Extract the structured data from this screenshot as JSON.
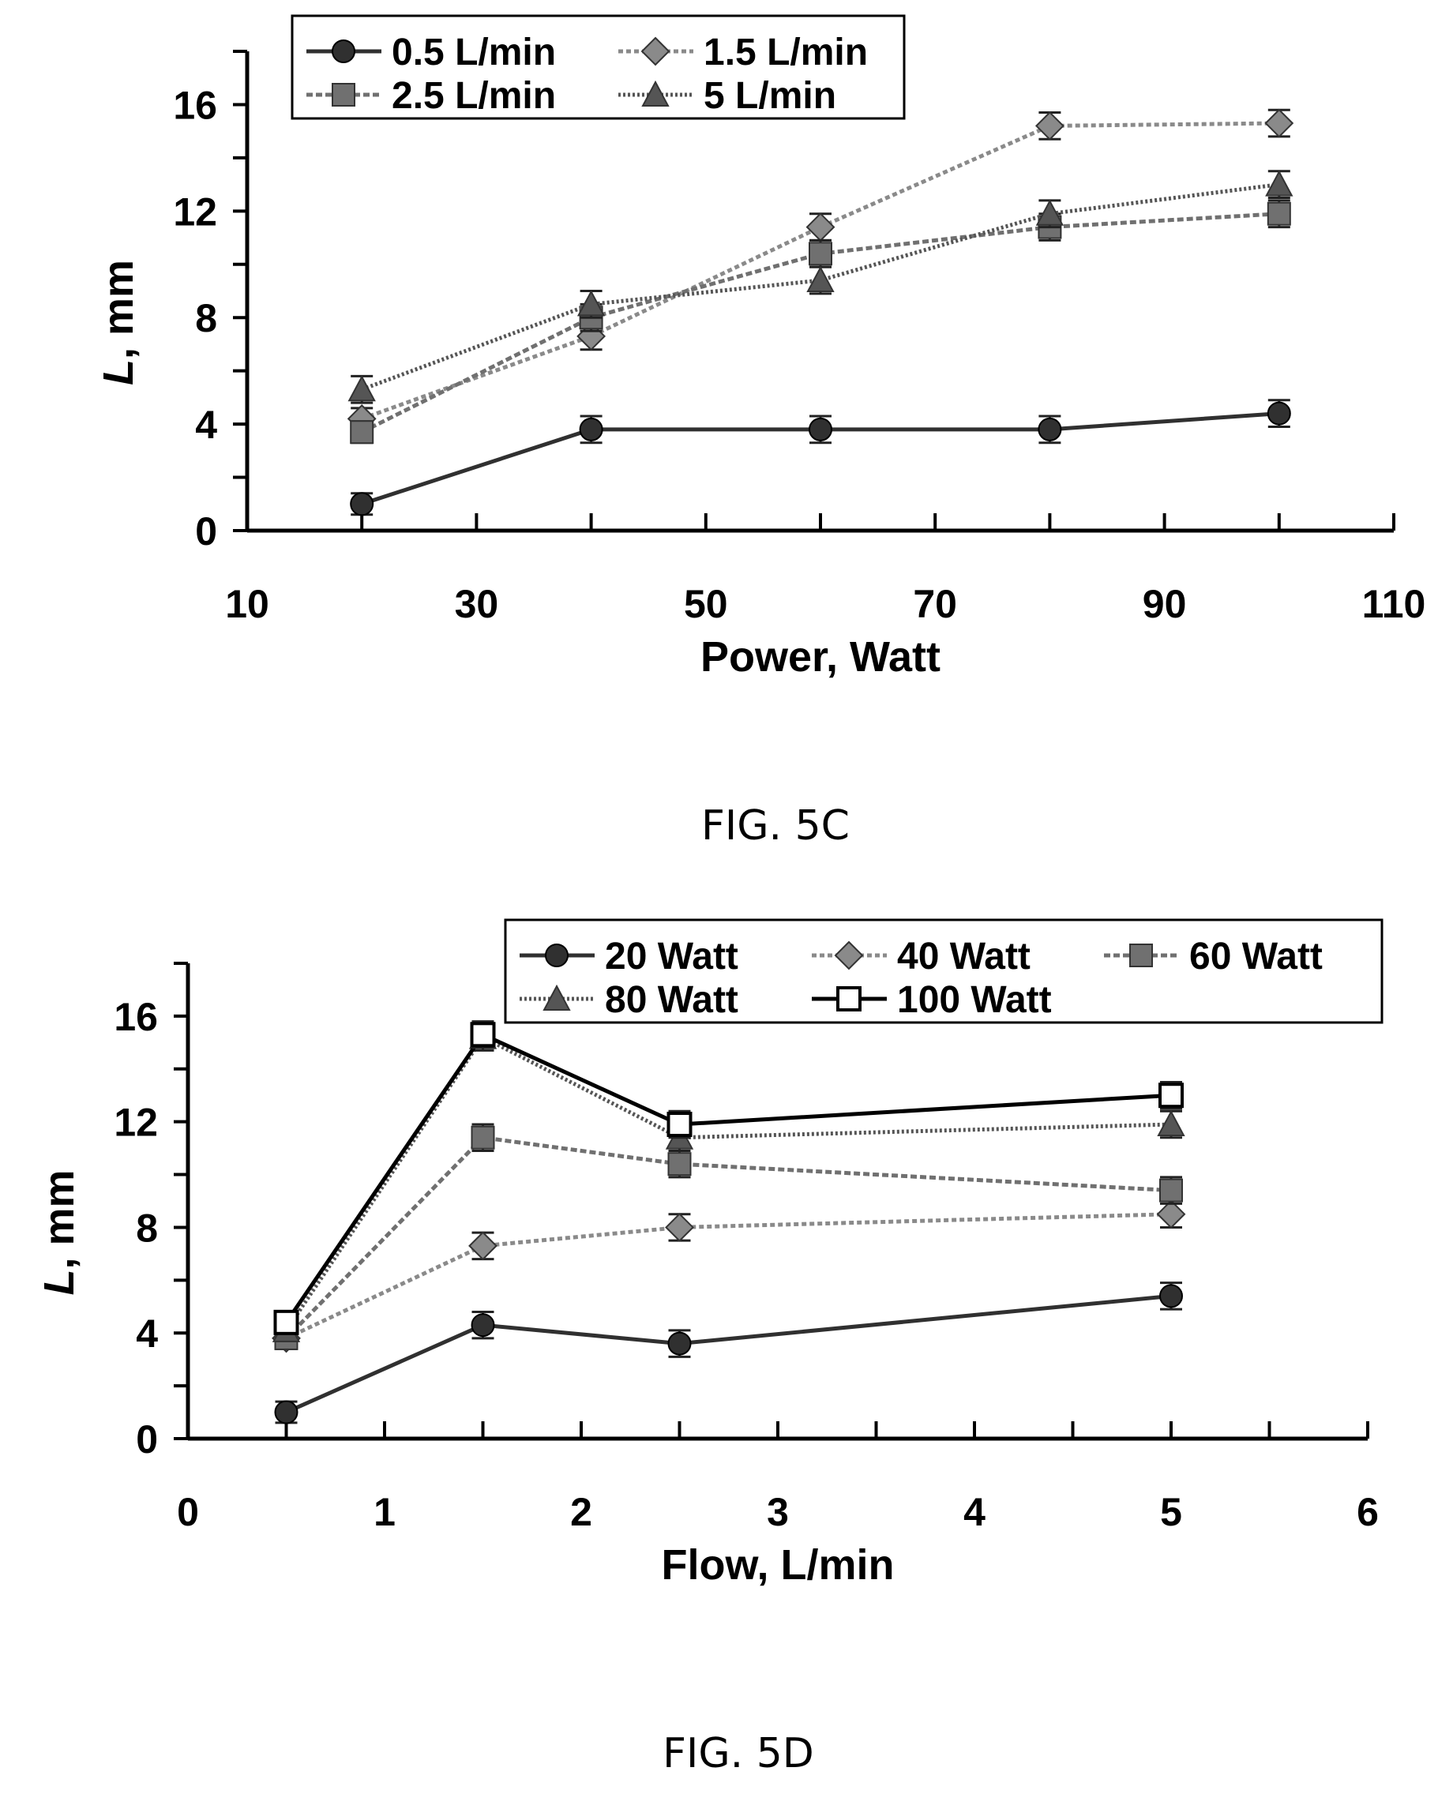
{
  "chart_data": [
    {
      "type": "line",
      "caption": "FIG. 5C",
      "xlabel": "Power, Watt",
      "ylabel_italic": "L",
      "ylabel_rest": ", mm",
      "xlim": [
        10,
        110
      ],
      "ylim": [
        0,
        18
      ],
      "x_ticks": [
        10,
        30,
        50,
        70,
        90,
        110
      ],
      "y_ticks": [
        0,
        4,
        8,
        12,
        16
      ],
      "legend_position": "top-left",
      "series": [
        {
          "name": "0.5 L/min",
          "marker": "circle",
          "color": "#303030",
          "dash": "",
          "x": [
            20,
            40,
            60,
            80,
            100
          ],
          "y": [
            1.0,
            3.8,
            3.8,
            3.8,
            4.4
          ],
          "err": [
            0.4,
            0.5,
            0.5,
            0.5,
            0.5
          ]
        },
        {
          "name": "1.5 L/min",
          "marker": "diamond",
          "color": "#8a8a8a",
          "dash": "6,4",
          "x": [
            20,
            40,
            60,
            80,
            100
          ],
          "y": [
            4.2,
            7.3,
            11.4,
            15.2,
            15.3
          ],
          "err": [
            0.4,
            0.5,
            0.5,
            0.5,
            0.5
          ]
        },
        {
          "name": "2.5 L/min",
          "marker": "square",
          "color": "#707070",
          "dash": "8,4",
          "x": [
            20,
            40,
            60,
            80,
            100
          ],
          "y": [
            3.7,
            8.0,
            10.4,
            11.4,
            11.9
          ],
          "err": [
            0.4,
            0.5,
            0.5,
            0.5,
            0.5
          ]
        },
        {
          "name": "5 L/min",
          "marker": "triangle",
          "color": "#555555",
          "dash": "3,3",
          "x": [
            20,
            40,
            60,
            80,
            100
          ],
          "y": [
            5.3,
            8.5,
            9.4,
            11.9,
            13.0
          ],
          "err": [
            0.5,
            0.5,
            0.5,
            0.5,
            0.5
          ]
        }
      ]
    },
    {
      "type": "line",
      "caption": "FIG. 5D",
      "xlabel": "Flow, L/min",
      "ylabel_italic": "L",
      "ylabel_rest": ", mm",
      "xlim": [
        0,
        6
      ],
      "ylim": [
        0,
        18
      ],
      "x_ticks": [
        0,
        1,
        2,
        3,
        4,
        5,
        6
      ],
      "y_ticks": [
        0,
        4,
        8,
        12,
        16
      ],
      "legend_position": "top-right",
      "series": [
        {
          "name": "20 Watt",
          "marker": "circle",
          "color": "#303030",
          "dash": "",
          "x": [
            0.5,
            1.5,
            2.5,
            5
          ],
          "y": [
            1.0,
            4.3,
            3.6,
            5.4
          ],
          "err": [
            0.4,
            0.5,
            0.5,
            0.5
          ]
        },
        {
          "name": "40 Watt",
          "marker": "diamond",
          "color": "#8a8a8a",
          "dash": "6,4",
          "x": [
            0.5,
            1.5,
            2.5,
            5
          ],
          "y": [
            3.8,
            7.3,
            8.0,
            8.5
          ],
          "err": [
            0.4,
            0.5,
            0.5,
            0.5
          ]
        },
        {
          "name": "60 Watt",
          "marker": "square",
          "color": "#707070",
          "dash": "8,4",
          "x": [
            0.5,
            1.5,
            2.5,
            5
          ],
          "y": [
            3.8,
            11.4,
            10.4,
            9.4
          ],
          "err": [
            0.4,
            0.5,
            0.5,
            0.5
          ]
        },
        {
          "name": "80 Watt",
          "marker": "triangle",
          "color": "#555555",
          "dash": "3,3",
          "x": [
            0.5,
            1.5,
            2.5,
            5
          ],
          "y": [
            4.1,
            15.2,
            11.4,
            11.9
          ],
          "err": [
            0.4,
            0.5,
            0.5,
            0.5
          ]
        },
        {
          "name": "100 Watt",
          "marker": "open-square",
          "color": "#000000",
          "dash": "",
          "x": [
            0.5,
            1.5,
            2.5,
            5
          ],
          "y": [
            4.4,
            15.3,
            11.9,
            13.0
          ],
          "err": [
            0.4,
            0.5,
            0.5,
            0.5
          ]
        }
      ]
    }
  ]
}
